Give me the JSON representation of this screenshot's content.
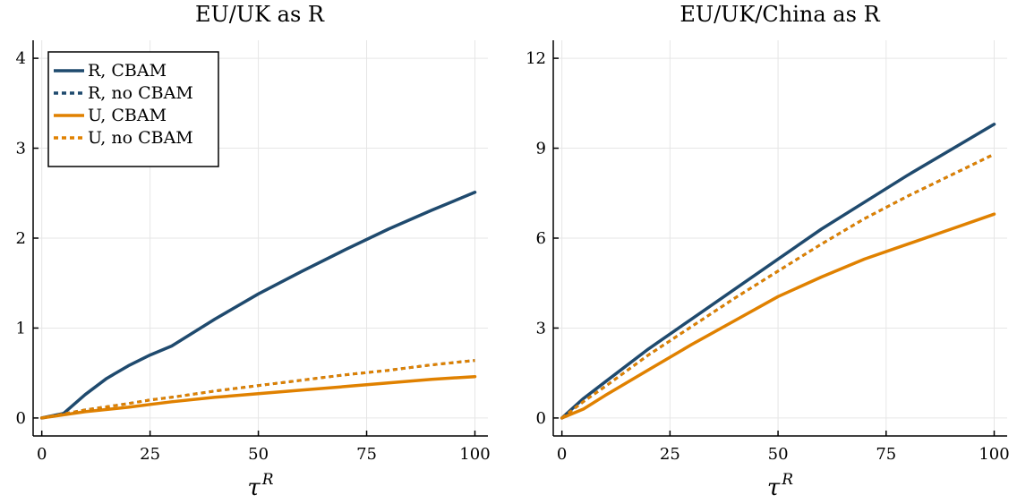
{
  "colors": {
    "R": "#1f4a6e",
    "U": "#e08100"
  },
  "legend": [
    {
      "label": "R, CBAM",
      "color": "#1f4a6e",
      "dash": false
    },
    {
      "label": "R, no CBAM",
      "color": "#1f4a6e",
      "dash": true
    },
    {
      "label": "U, CBAM",
      "color": "#e08100",
      "dash": false
    },
    {
      "label": "U, no CBAM",
      "color": "#e08100",
      "dash": true
    }
  ],
  "chart_data": [
    {
      "type": "line",
      "title": "EU/UK as R",
      "xlabel_base": "τ",
      "xlabel_sup": "R",
      "ylabel": "",
      "xlim": [
        -2,
        103
      ],
      "ylim": [
        -0.2,
        4.2
      ],
      "xticks": [
        0,
        25,
        50,
        75,
        100
      ],
      "yticks": [
        0,
        1,
        2,
        3,
        4
      ],
      "grid": true,
      "legend_position": "top-left",
      "series": [
        {
          "name": "R, CBAM",
          "color": "#1f4a6e",
          "dash": false,
          "x": [
            0,
            5,
            10,
            15,
            20,
            25,
            30,
            40,
            50,
            60,
            70,
            80,
            90,
            100
          ],
          "y": [
            0,
            0.05,
            0.26,
            0.44,
            0.58,
            0.7,
            0.8,
            1.1,
            1.38,
            1.63,
            1.87,
            2.1,
            2.31,
            2.51
          ]
        },
        {
          "name": "R, no CBAM",
          "color": "#1f4a6e",
          "dash": true,
          "x": [
            0,
            10,
            20,
            25,
            30,
            40,
            50,
            60,
            70,
            80,
            90,
            100
          ],
          "y": [
            0,
            0.09,
            0.16,
            0.2,
            0.23,
            0.3,
            0.36,
            0.42,
            0.48,
            0.53,
            0.59,
            0.64
          ]
        },
        {
          "name": "U, CBAM",
          "color": "#e08100",
          "dash": false,
          "x": [
            0,
            10,
            20,
            25,
            30,
            40,
            50,
            60,
            70,
            80,
            90,
            100
          ],
          "y": [
            0,
            0.07,
            0.12,
            0.15,
            0.18,
            0.23,
            0.27,
            0.31,
            0.35,
            0.39,
            0.43,
            0.46
          ]
        },
        {
          "name": "U, no CBAM",
          "color": "#e08100",
          "dash": true,
          "x": [
            0,
            10,
            20,
            25,
            30,
            40,
            50,
            60,
            70,
            80,
            90,
            100
          ],
          "y": [
            0,
            0.09,
            0.16,
            0.2,
            0.23,
            0.3,
            0.36,
            0.42,
            0.48,
            0.53,
            0.59,
            0.64
          ]
        }
      ]
    },
    {
      "type": "line",
      "title": "EU/UK/China as R",
      "xlabel_base": "τ",
      "xlabel_sup": "R",
      "ylabel": "",
      "xlim": [
        -2,
        103
      ],
      "ylim": [
        -0.6,
        12.6
      ],
      "xticks": [
        0,
        25,
        50,
        75,
        100
      ],
      "yticks": [
        0,
        3,
        6,
        9,
        12
      ],
      "grid": true,
      "legend_position": "none",
      "series": [
        {
          "name": "R, CBAM",
          "color": "#1f4a6e",
          "dash": false,
          "x": [
            0,
            5,
            10,
            20,
            30,
            40,
            50,
            60,
            70,
            80,
            90,
            100
          ],
          "y": [
            0,
            0.65,
            1.2,
            2.3,
            3.3,
            4.3,
            5.3,
            6.3,
            7.2,
            8.1,
            8.95,
            9.8
          ]
        },
        {
          "name": "R, no CBAM",
          "color": "#1f4a6e",
          "dash": true,
          "x": [
            0,
            5,
            10,
            20,
            30,
            40,
            50,
            60,
            70,
            80,
            90,
            100
          ],
          "y": [
            0,
            0.55,
            1.05,
            2.1,
            3.05,
            4.0,
            4.9,
            5.8,
            6.65,
            7.4,
            8.1,
            8.8
          ]
        },
        {
          "name": "U, CBAM",
          "color": "#e08100",
          "dash": false,
          "x": [
            0,
            5,
            10,
            20,
            30,
            40,
            50,
            60,
            70,
            80,
            90,
            100
          ],
          "y": [
            0,
            0.3,
            0.75,
            1.6,
            2.45,
            3.25,
            4.05,
            4.7,
            5.3,
            5.8,
            6.3,
            6.8
          ]
        },
        {
          "name": "U, no CBAM",
          "color": "#e08100",
          "dash": true,
          "x": [
            0,
            5,
            10,
            20,
            30,
            40,
            50,
            60,
            70,
            80,
            90,
            100
          ],
          "y": [
            0,
            0.55,
            1.05,
            2.1,
            3.05,
            4.0,
            4.9,
            5.8,
            6.65,
            7.4,
            8.1,
            8.8
          ]
        }
      ]
    }
  ]
}
